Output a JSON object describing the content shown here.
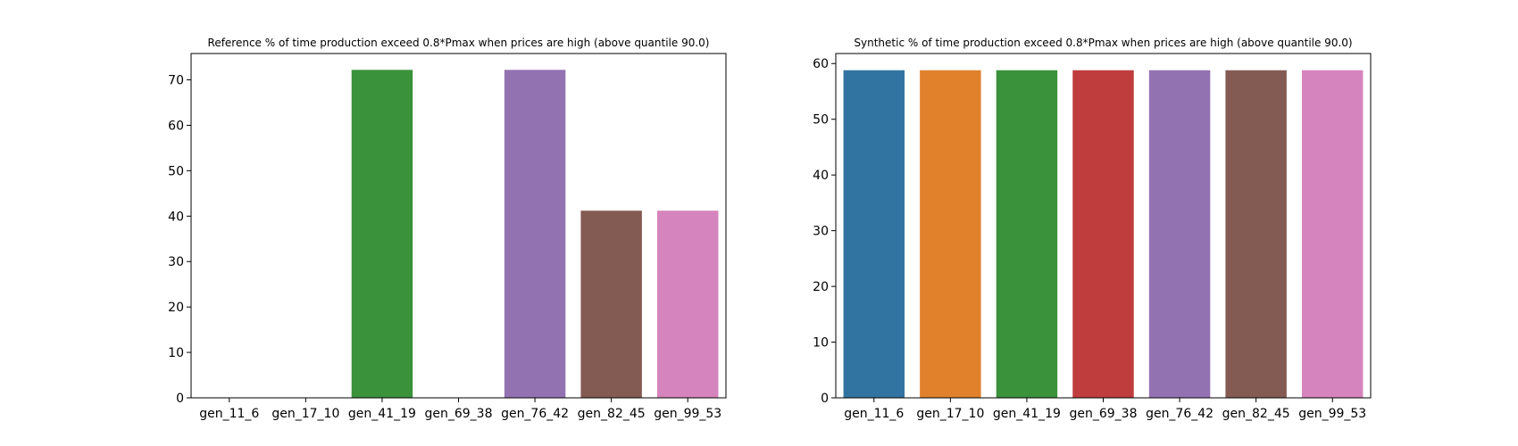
{
  "chart_data": [
    {
      "type": "bar",
      "title": "Reference % of time production exceed 0.8*Pmax when prices are high (above quantile 90.0)",
      "xlabel": "",
      "ylabel": "",
      "categories": [
        "gen_11_6",
        "gen_17_10",
        "gen_41_19",
        "gen_69_38",
        "gen_76_42",
        "gen_82_45",
        "gen_99_53"
      ],
      "values": [
        0,
        0,
        72.2,
        0,
        72.2,
        41.2,
        41.2
      ],
      "colors": [
        "#3274a1",
        "#e1812c",
        "#3a923a",
        "#c03d3e",
        "#9372b2",
        "#845b53",
        "#d684bd"
      ],
      "ylim": [
        0,
        75.8
      ],
      "yticks": [
        0,
        10,
        20,
        30,
        40,
        50,
        60,
        70
      ],
      "grid": false,
      "legend": "none"
    },
    {
      "type": "bar",
      "title": "Synthetic % of time production exceed 0.8*Pmax when prices are high (above quantile 90.0)",
      "xlabel": "",
      "ylabel": "",
      "categories": [
        "gen_11_6",
        "gen_17_10",
        "gen_41_19",
        "gen_69_38",
        "gen_76_42",
        "gen_82_45",
        "gen_99_53"
      ],
      "values": [
        58.8,
        58.8,
        58.8,
        58.8,
        58.8,
        58.8,
        58.8
      ],
      "colors": [
        "#3274a1",
        "#e1812c",
        "#3a923a",
        "#c03d3e",
        "#9372b2",
        "#845b53",
        "#d684bd"
      ],
      "ylim": [
        0,
        61.8
      ],
      "yticks": [
        0,
        10,
        20,
        30,
        40,
        50,
        60
      ],
      "grid": false,
      "legend": "none"
    }
  ]
}
